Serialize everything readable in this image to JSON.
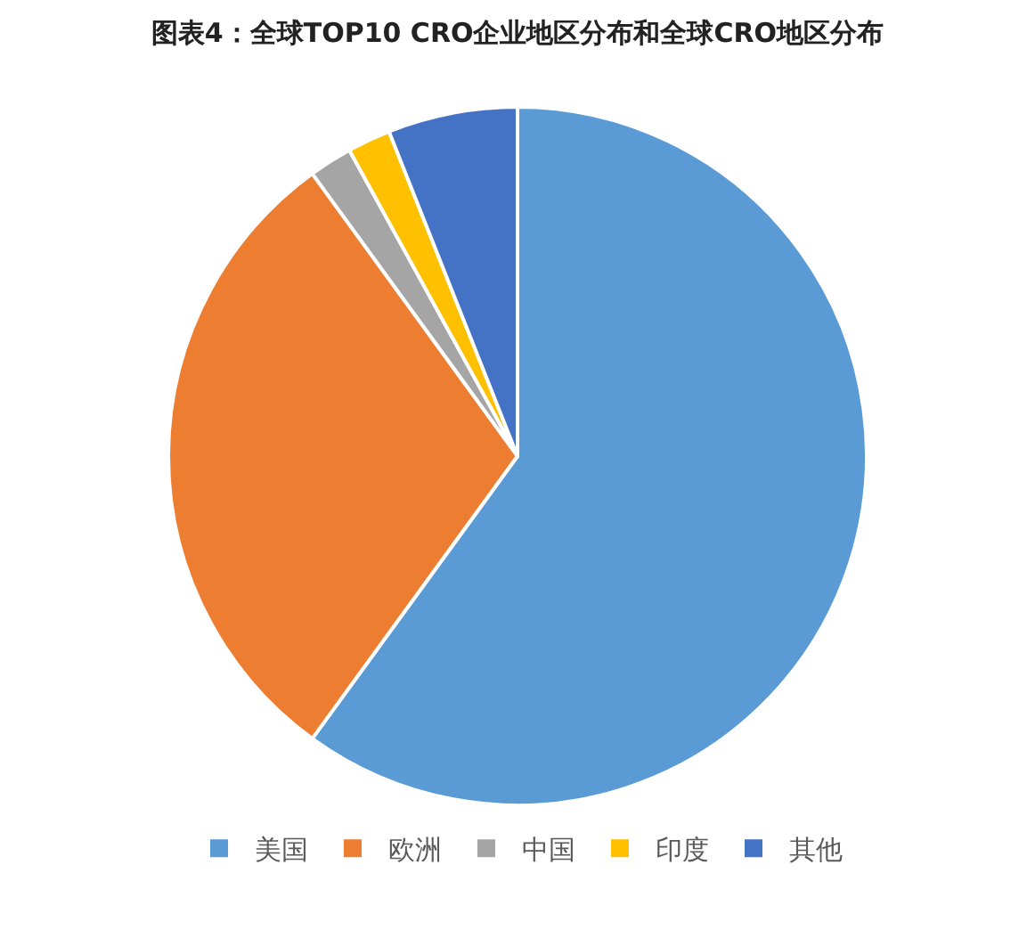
{
  "chart_data": {
    "type": "pie",
    "title": "图表4：全球TOP10 CRO企业地区分布和全球CRO地区分布",
    "categories": [
      "美国",
      "欧洲",
      "中国",
      "印度",
      "其他"
    ],
    "values": [
      60,
      30,
      2,
      2,
      6
    ],
    "colors": [
      "#5b9bd5",
      "#ed7d31",
      "#a5a5a5",
      "#ffc000",
      "#4472c4"
    ],
    "legend": "bottom"
  }
}
